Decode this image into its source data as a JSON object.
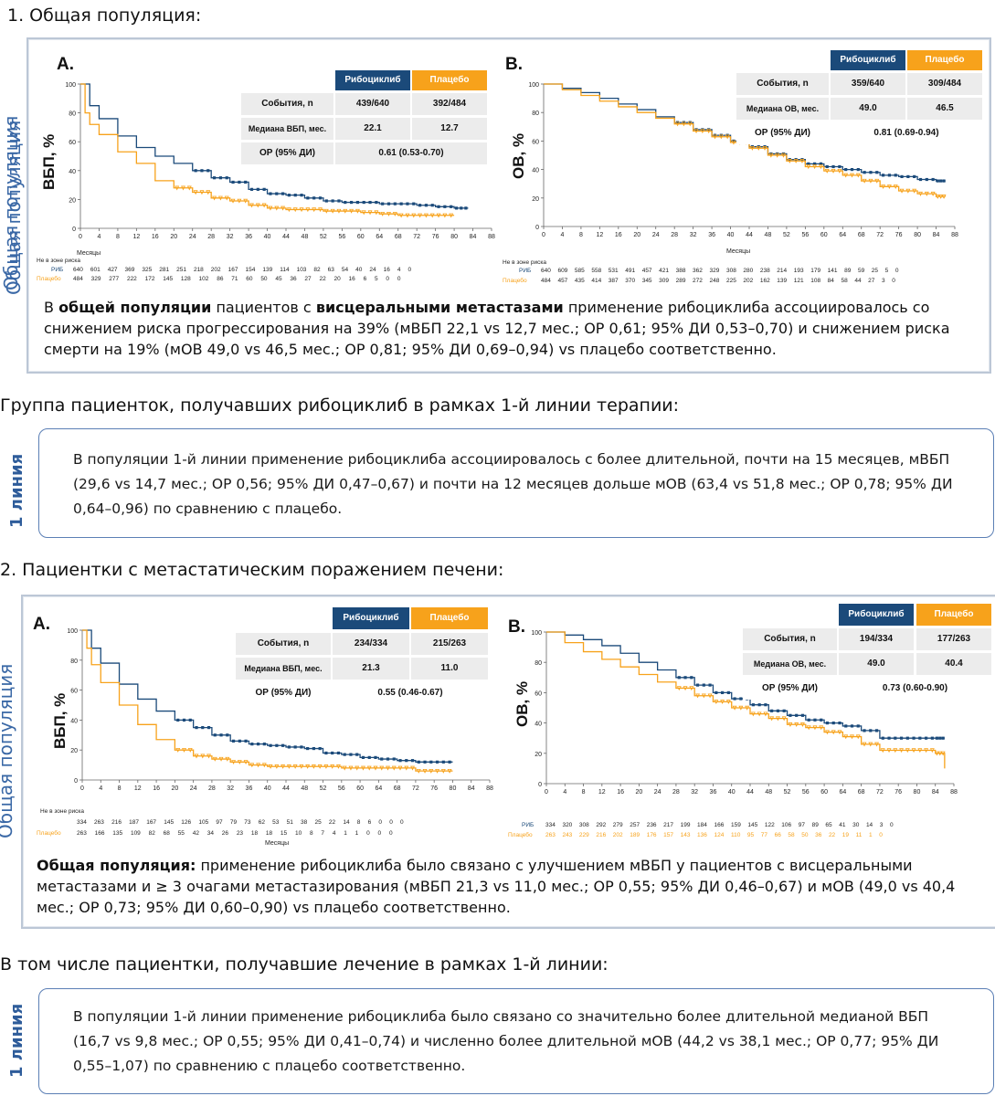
{
  "colors": {
    "rib": "#1b4a7a",
    "plc": "#f7a21b",
    "frame": "#bcc7d6",
    "note_border": "#5b7fb5",
    "side": "#3a68a6"
  },
  "section1": {
    "heading": "1. Общая популяция:",
    "side_label": "Общая популяция",
    "chartA": {
      "letter": "A.",
      "ylabel": "ВБП, %",
      "xlabel": "Месяцы",
      "table": {
        "col_rib": "Рибоциклиб",
        "col_plc": "Плацебо",
        "row1_label": "События, n",
        "row1_rib": "439/640",
        "row1_plc": "392/484",
        "row2_label": "Медиана ВБП, мес.",
        "row2_rib": "22.1",
        "row2_plc": "12.7",
        "row3_label": "ОР (95% ДИ)",
        "row3_val": "0.61 (0.53-0.70)"
      },
      "risk_title": "Не в зоне риска",
      "risk_rib_label": "РИБ",
      "risk_plc_label": "Плацебо",
      "risk_rib": "640 601 427 369 325 281 251 218 202 167 154 139 114 103 82 63 54 40 24 16 4 0",
      "risk_plc": "484 329 277 222 172 145 128 102 86 71 60 50 45 36 27 22 20 16 6 5 0 0"
    },
    "chartB": {
      "letter": "B.",
      "ylabel": "ОВ, %",
      "xlabel": "Месяцы",
      "table": {
        "col_rib": "Рибоциклиб",
        "col_plc": "Плацебо",
        "row1_label": "События, n",
        "row1_rib": "359/640",
        "row1_plc": "309/484",
        "row2_label": "Медиана ОВ, мес.",
        "row2_rib": "49.0",
        "row2_plc": "46.5",
        "row3_label": "ОР (95% ДИ)",
        "row3_val": "0.81 (0.69-0.94)"
      },
      "risk_title": "Не в зоне риска",
      "risk_rib_label": "РИБ",
      "risk_plc_label": "Плацебо",
      "risk_rib": "640 609 585 558 531 491 457 421 388 362 329 308 280 238 214 193 179 141 89 59 25 5 0",
      "risk_plc": "484 457 435 414 387 370 345 309 289 272 248 225 202 162 139 121 108 84 58 44 27 3 0"
    },
    "summary_parts": [
      "В ",
      "общей популяции",
      " пациентов с ",
      "висцеральными метастазами",
      " применение рибоциклиба ассоциировалось со снижением риска прогрессирования на 39% (мВБП 22,1 vs 12,7 мес.; ОР 0,61; 95% ДИ 0,53–0,70) и снижением риска смерти на 19% (мОВ 49,0 vs 46,5 мес.; ОР 0,81; 95% ДИ 0,69–0,94) vs плацебо соответственно."
    ]
  },
  "group1": {
    "heading": "Группа пациенток, получавших рибоциклиб в рамках 1-й линии терапии:",
    "side_label": "1 линия",
    "text": "В популяции 1-й линии применение рибоциклиба ассоциировалось с более длительной, почти на 15 месяцев, мВБП (29,6 vs 14,7 мес.; ОР 0,56; 95% ДИ 0,47–0,67) и почти на 12 месяцев дольше мОВ (63,4 vs 51,8 мес.; ОР 0,78; 95% ДИ 0,64–0,96) по сравнению с плацебо."
  },
  "section2": {
    "heading": "2. Пациентки с метастатическим поражением печени:",
    "side_label": "Общая популяция",
    "chartA": {
      "letter": "A.",
      "ylabel": "ВБП, %",
      "xlabel": "Месяцы",
      "table": {
        "col_rib": "Рибоциклиб",
        "col_plc": "Плацебо",
        "row1_label": "События, n",
        "row1_rib": "234/334",
        "row1_plc": "215/263",
        "row2_label": "Медиана ВБП, мес.",
        "row2_rib": "21.3",
        "row2_plc": "11.0",
        "row3_label": "ОР (95% ДИ)",
        "row3_val": "0.55 (0.46-0.67)"
      },
      "risk_title": "Не в зоне риска",
      "risk_rib_label": "",
      "risk_plc_label": "",
      "risk_rib": "334 263 216 187 167 145 126 105 97 79 73 62 53 51 38 25 22 14 8 6 0 0 0",
      "risk_plc": "263 166 135 109 82 68 55 42 34 26 23 18 18 15 10 8 7 4 1 1 0 0 0"
    },
    "chartB": {
      "letter": "B.",
      "ylabel": "ОВ, %",
      "xlabel": "",
      "table": {
        "col_rib": "Рибоциклиб",
        "col_plc": "Плацебо",
        "row1_label": "События, n",
        "row1_rib": "194/334",
        "row1_plc": "177/263",
        "row2_label": "Медиана ОВ, мес.",
        "row2_rib": "49.0",
        "row2_plc": "40.4",
        "row3_label": "ОР (95% ДИ)",
        "row3_val": "0.73 (0.60-0.90)"
      },
      "risk_title": "",
      "risk_rib_label": "РИБ",
      "risk_plc_label": "Плацебо",
      "risk_rib": "334 320 308 292 279 257 236 217 199 184 166 159 145 122 106 97 89 65 41 30 14 3 0",
      "risk_plc": "263 243 229 216 202 189 176 157 143 136 124 110 95 77 66 58 50 36 22 19 11 1 0"
    },
    "summary_bold": "Общая популяция:",
    "summary_rest": " применение рибоциклиба было связано с улучшением мВБП у пациентов с висцеральными метастазами и ≥ 3 очагами метастазирования (мВБП 21,3 vs 11,0 мес.; ОР 0,55; 95% ДИ 0,46–0,67) и мОВ (49,0 vs 40,4 мес.; ОР 0,73; 95% ДИ 0,60–0,90) vs плацебо соответственно."
  },
  "group2": {
    "heading": "В том числе пациентки, получавшие лечение в рамках 1-й линии:",
    "side_label": "1 линия",
    "text": "В популяции 1-й линии применение рибоциклиба было связано со значительно более длительной медианой ВБП (16,7 vs 9,8 мес.; ОР 0,55; 95% ДИ 0,41–0,74) и численно более длительной мОВ (44,2 vs 38,1 мес.; ОР 0,77; 95% ДИ 0,55–1,07) по сравнению с плацебо соответственно."
  },
  "chart_data": [
    {
      "type": "line",
      "chart": "1A",
      "ylabel": "ВБП, %",
      "xlabel": "Месяцы",
      "xlim": [
        0,
        88
      ],
      "ylim": [
        0,
        100
      ],
      "x_ticks": [
        0,
        4,
        8,
        12,
        16,
        20,
        24,
        28,
        32,
        36,
        40,
        44,
        48,
        52,
        56,
        60,
        64,
        68,
        72,
        76,
        80,
        84,
        88
      ],
      "y_ticks": [
        0,
        20,
        40,
        60,
        80,
        100
      ],
      "series": [
        {
          "name": "Рибоциклиб",
          "x": [
            0,
            2,
            4,
            8,
            12,
            16,
            20,
            24,
            28,
            32,
            36,
            40,
            44,
            48,
            52,
            56,
            60,
            64,
            68,
            72,
            76,
            80,
            83
          ],
          "y": [
            100,
            85,
            76,
            64,
            56,
            50,
            45,
            40,
            35,
            32,
            27,
            24,
            23,
            21,
            19,
            18,
            18,
            17,
            17,
            16,
            15,
            14,
            14
          ]
        },
        {
          "name": "Плацебо",
          "x": [
            0,
            1,
            2,
            4,
            8,
            12,
            16,
            20,
            24,
            28,
            32,
            36,
            40,
            44,
            48,
            52,
            56,
            60,
            64,
            68,
            72,
            76,
            80
          ],
          "y": [
            100,
            80,
            72,
            65,
            53,
            45,
            33,
            28,
            25,
            21,
            19,
            16,
            14,
            13,
            13,
            12,
            12,
            11,
            10,
            9,
            9,
            9,
            9
          ]
        }
      ]
    },
    {
      "type": "line",
      "chart": "1B",
      "ylabel": "ОВ, %",
      "xlabel": "Месяцы",
      "xlim": [
        0,
        88
      ],
      "ylim": [
        0,
        100
      ],
      "x_ticks": [
        0,
        4,
        8,
        12,
        16,
        20,
        24,
        28,
        32,
        36,
        40,
        44,
        48,
        52,
        56,
        60,
        64,
        68,
        72,
        76,
        80,
        84,
        88
      ],
      "y_ticks": [
        0,
        20,
        40,
        60,
        80,
        100
      ],
      "series": [
        {
          "name": "Рибоциклиб",
          "x": [
            0,
            4,
            8,
            12,
            16,
            20,
            24,
            28,
            32,
            36,
            40,
            44,
            48,
            52,
            56,
            60,
            64,
            68,
            72,
            76,
            80,
            84,
            86
          ],
          "y": [
            100,
            97,
            94,
            90,
            86,
            82,
            77,
            73,
            68,
            64,
            60,
            56,
            51,
            47,
            44,
            42,
            40,
            38,
            36,
            35,
            33,
            32,
            32
          ]
        },
        {
          "name": "Плацебо",
          "x": [
            0,
            4,
            8,
            12,
            16,
            20,
            24,
            28,
            32,
            36,
            40,
            44,
            48,
            52,
            56,
            60,
            64,
            68,
            72,
            76,
            80,
            84,
            86
          ],
          "y": [
            100,
            96,
            92,
            88,
            84,
            80,
            76,
            72,
            67,
            63,
            59,
            55,
            50,
            46,
            42,
            39,
            36,
            32,
            28,
            25,
            23,
            21,
            21
          ]
        }
      ]
    },
    {
      "type": "line",
      "chart": "2A",
      "ylabel": "ВБП, %",
      "xlabel": "Месяцы",
      "xlim": [
        0,
        88
      ],
      "ylim": [
        0,
        100
      ],
      "x_ticks": [
        0,
        4,
        8,
        12,
        16,
        20,
        24,
        28,
        32,
        36,
        40,
        44,
        48,
        52,
        56,
        60,
        64,
        68,
        72,
        76,
        80,
        84,
        88
      ],
      "y_ticks": [
        0,
        20,
        40,
        60,
        80,
        100
      ],
      "series": [
        {
          "name": "Рибоциклиб",
          "x": [
            0,
            2,
            4,
            8,
            12,
            16,
            20,
            24,
            28,
            32,
            36,
            40,
            44,
            48,
            52,
            56,
            60,
            64,
            68,
            72,
            76,
            80
          ],
          "y": [
            100,
            88,
            78,
            64,
            54,
            46,
            40,
            35,
            30,
            26,
            24,
            23,
            22,
            21,
            18,
            17,
            15,
            14,
            13,
            12,
            12,
            12
          ]
        },
        {
          "name": "Плацебо",
          "x": [
            0,
            1,
            2,
            4,
            8,
            12,
            16,
            20,
            24,
            28,
            32,
            36,
            40,
            44,
            48,
            52,
            56,
            60,
            64,
            68,
            72,
            76,
            80
          ],
          "y": [
            100,
            88,
            77,
            65,
            50,
            37,
            27,
            20,
            16,
            14,
            12,
            10,
            9,
            9,
            9,
            9,
            8,
            8,
            8,
            8,
            6,
            6,
            6
          ]
        }
      ]
    },
    {
      "type": "line",
      "chart": "2B",
      "ylabel": "ОВ, %",
      "xlabel": "",
      "xlim": [
        0,
        88
      ],
      "ylim": [
        0,
        100
      ],
      "x_ticks": [
        0,
        4,
        8,
        12,
        16,
        20,
        24,
        28,
        32,
        36,
        40,
        44,
        48,
        52,
        56,
        60,
        64,
        68,
        72,
        76,
        80,
        84,
        88
      ],
      "y_ticks": [
        0,
        20,
        40,
        60,
        80,
        100
      ],
      "series": [
        {
          "name": "Рибоциклиб",
          "x": [
            0,
            4,
            8,
            12,
            16,
            20,
            24,
            28,
            32,
            36,
            40,
            44,
            48,
            52,
            56,
            60,
            64,
            68,
            72,
            76,
            80,
            84,
            86
          ],
          "y": [
            100,
            98,
            95,
            91,
            86,
            80,
            75,
            70,
            65,
            60,
            56,
            52,
            48,
            45,
            42,
            40,
            38,
            35,
            30,
            30,
            30,
            30,
            30
          ]
        },
        {
          "name": "Плацебо",
          "x": [
            0,
            4,
            8,
            12,
            16,
            20,
            24,
            28,
            32,
            36,
            40,
            44,
            48,
            52,
            56,
            60,
            64,
            68,
            72,
            76,
            80,
            84,
            86
          ],
          "y": [
            100,
            93,
            87,
            82,
            77,
            72,
            67,
            63,
            58,
            54,
            50,
            46,
            43,
            39,
            37,
            34,
            31,
            26,
            22,
            22,
            22,
            20,
            10
          ]
        }
      ]
    }
  ]
}
